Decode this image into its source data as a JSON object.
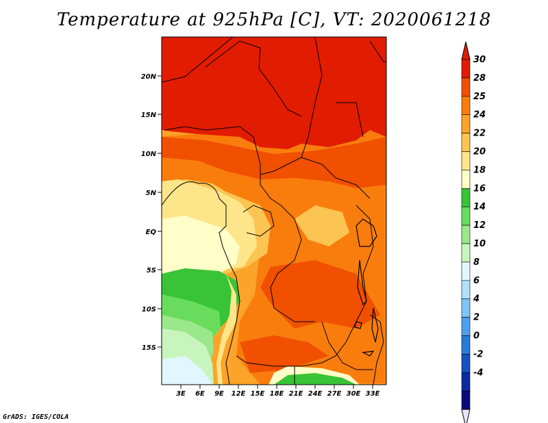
{
  "title": "Temperature at 925hPa [C], VT: 2020061218",
  "credit": "GrADS: IGES/COLA",
  "lat_ticks": [
    "20N",
    "15N",
    "10N",
    "5N",
    "EQ",
    "5S",
    "10S",
    "15S"
  ],
  "lon_ticks": [
    "3E",
    "6E",
    "9E",
    "12E",
    "15E",
    "18E",
    "21E",
    "24E",
    "27E",
    "30E",
    "33E"
  ],
  "legend": {
    "labels": [
      "30",
      "28",
      "25",
      "24",
      "22",
      "20",
      "18",
      "16",
      "14",
      "12",
      "10",
      "8",
      "6",
      "4",
      "2",
      "0",
      "-2",
      "-4"
    ],
    "colors": [
      "#e11c00",
      "#f05000",
      "#f97d0d",
      "#fca32a",
      "#fcc452",
      "#fde58a",
      "#fffdc8",
      "#38c436",
      "#69dc5e",
      "#9ae88b",
      "#c8f5bd",
      "#e2f6ff",
      "#b0e0fc",
      "#7fc4f6",
      "#4ea0ee",
      "#2c7ad8",
      "#1651c0",
      "#0b2aa2",
      "#0a0a78"
    ],
    "top_triangle_color": "#e11c00",
    "bottom_triangle_color": "#e6e6fa"
  }
}
